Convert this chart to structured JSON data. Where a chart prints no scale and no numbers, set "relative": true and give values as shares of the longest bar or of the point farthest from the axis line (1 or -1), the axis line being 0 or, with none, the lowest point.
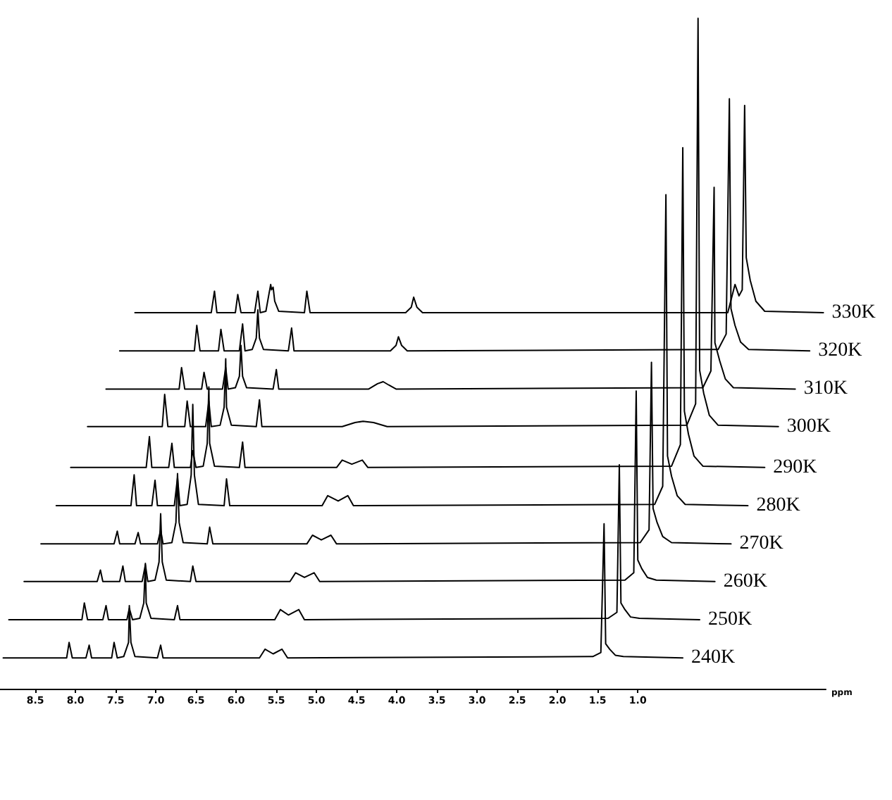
{
  "chart_data": {
    "type": "line",
    "relative": true,
    "xlabel": "ppm",
    "xlim": [
      8.94,
      -1.34
    ],
    "xticks": [
      8.5,
      {
        "value": 8,
        "label": "8.0"
      },
      7.5,
      {
        "value": 7,
        "label": "7.0"
      },
      6.5,
      {
        "value": 6,
        "label": "6.0"
      },
      5.5,
      {
        "value": 5,
        "label": "5.0"
      },
      4.5,
      {
        "value": 4,
        "label": "4.0"
      },
      3.5,
      {
        "value": 3,
        "label": "3.0"
      },
      2.5,
      {
        "value": 2,
        "label": "2.0"
      },
      1.5,
      {
        "value": 1,
        "label": "1.0"
      }
    ],
    "marker": "none",
    "line_style": "solid",
    "series": [
      {
        "name": "330K",
        "color": "#000000",
        "x": [
          7.26,
          6.31,
          6.27,
          6.24,
          6.01,
          5.98,
          5.94,
          5.77,
          5.73,
          5.7,
          5.63,
          5.59,
          5.57,
          5.56,
          5.54,
          5.52,
          5.47,
          5.15,
          5.12,
          5.08,
          3.89,
          3.82,
          3.79,
          3.75,
          3.68,
          -0.12,
          -0.21,
          -0.26,
          -0.3,
          -0.33,
          -0.35,
          -0.4,
          -0.47,
          -0.58,
          -1.31
        ],
        "values": [
          0.561,
          0.561,
          0.593,
          0.561,
          0.561,
          0.588,
          0.561,
          0.561,
          0.593,
          0.561,
          0.563,
          0.59,
          0.603,
          0.595,
          0.599,
          0.578,
          0.563,
          0.561,
          0.593,
          0.561,
          0.561,
          0.569,
          0.584,
          0.569,
          0.561,
          0.561,
          0.603,
          0.586,
          0.595,
          0.87,
          0.643,
          0.609,
          0.578,
          0.563,
          0.561
        ]
      },
      {
        "name": "320K",
        "color": "#000000",
        "x": [
          7.45,
          6.52,
          6.49,
          6.45,
          6.22,
          6.19,
          6.15,
          5.96,
          5.92,
          5.89,
          5.8,
          5.75,
          5.73,
          5.71,
          5.66,
          5.35,
          5.31,
          5.28,
          4.08,
          4.01,
          3.98,
          3.94,
          3.87,
          0,
          -0.1,
          -0.14,
          -0.16,
          -0.21,
          -0.28,
          -0.38,
          -1.14
        ],
        "values": [
          0.504,
          0.504,
          0.542,
          0.504,
          0.504,
          0.536,
          0.504,
          0.504,
          0.544,
          0.504,
          0.506,
          0.523,
          0.565,
          0.523,
          0.506,
          0.504,
          0.538,
          0.504,
          0.504,
          0.512,
          0.525,
          0.512,
          0.504,
          0.506,
          0.529,
          0.88,
          0.567,
          0.542,
          0.517,
          0.506,
          0.504
        ]
      },
      {
        "name": "310K",
        "color": "#000000",
        "x": [
          7.62,
          6.71,
          6.68,
          6.64,
          6.43,
          6.4,
          6.36,
          6.17,
          6.13,
          6.1,
          6.01,
          5.96,
          5.94,
          5.92,
          5.87,
          5.54,
          5.5,
          5.47,
          4.35,
          4.24,
          4.17,
          4.1,
          4.01,
          0.19,
          0.09,
          0.05,
          0.04,
          -0.02,
          -0.09,
          -0.19,
          -0.96
        ],
        "values": [
          0.447,
          0.447,
          0.479,
          0.447,
          0.447,
          0.472,
          0.447,
          0.447,
          0.479,
          0.447,
          0.449,
          0.466,
          0.512,
          0.466,
          0.449,
          0.447,
          0.476,
          0.447,
          0.447,
          0.455,
          0.458,
          0.453,
          0.447,
          0.449,
          0.474,
          0.748,
          0.516,
          0.489,
          0.462,
          0.449,
          0.447
        ]
      },
      {
        "name": "300K",
        "color": "#000000",
        "x": [
          7.85,
          6.92,
          6.89,
          6.85,
          6.64,
          6.61,
          6.57,
          6.38,
          6.34,
          6.31,
          6.2,
          6.15,
          6.13,
          6.12,
          6.06,
          5.75,
          5.71,
          5.68,
          4.68,
          4.52,
          4.42,
          4.29,
          4.12,
          0.39,
          0.28,
          0.25,
          0.23,
          0.18,
          0.11,
          0,
          -0.75
        ],
        "values": [
          0.391,
          0.391,
          0.439,
          0.391,
          0.391,
          0.429,
          0.391,
          0.391,
          0.429,
          0.391,
          0.393,
          0.42,
          0.492,
          0.42,
          0.393,
          0.391,
          0.431,
          0.391,
          0.391,
          0.397,
          0.399,
          0.397,
          0.391,
          0.393,
          0.425,
          1,
          0.475,
          0.441,
          0.408,
          0.393,
          0.391
        ]
      },
      {
        "name": "290K",
        "color": "#000000",
        "x": [
          8.06,
          7.12,
          7.08,
          7.05,
          6.84,
          6.8,
          6.77,
          6.57,
          6.54,
          6.5,
          6.41,
          6.36,
          6.34,
          6.33,
          6.27,
          5.96,
          5.92,
          5.89,
          4.75,
          4.68,
          4.56,
          4.43,
          4.36,
          0.58,
          0.47,
          0.44,
          0.42,
          0.37,
          0.3,
          0.19,
          -0.58
        ],
        "values": [
          0.33,
          0.33,
          0.376,
          0.33,
          0.33,
          0.366,
          0.33,
          0.33,
          0.355,
          0.33,
          0.332,
          0.366,
          0.45,
          0.366,
          0.332,
          0.33,
          0.368,
          0.33,
          0.33,
          0.341,
          0.335,
          0.341,
          0.33,
          0.332,
          0.364,
          0.807,
          0.414,
          0.38,
          0.347,
          0.332,
          0.33
        ]
      },
      {
        "name": "280K",
        "color": "#000000",
        "x": [
          8.24,
          7.31,
          7.27,
          7.24,
          7.05,
          7.01,
          6.98,
          6.77,
          6.73,
          6.7,
          6.61,
          6.56,
          6.54,
          6.52,
          6.47,
          6.15,
          6.12,
          6.08,
          4.93,
          4.86,
          4.73,
          4.61,
          4.54,
          0.79,
          0.69,
          0.65,
          0.63,
          0.58,
          0.51,
          0.41,
          -0.37
        ],
        "values": [
          0.273,
          0.273,
          0.319,
          0.273,
          0.273,
          0.311,
          0.273,
          0.273,
          0.315,
          0.273,
          0.275,
          0.319,
          0.424,
          0.319,
          0.275,
          0.273,
          0.313,
          0.273,
          0.273,
          0.288,
          0.28,
          0.288,
          0.273,
          0.275,
          0.302,
          0.737,
          0.347,
          0.317,
          0.288,
          0.275,
          0.273
        ]
      },
      {
        "name": "270K",
        "color": "#000000",
        "x": [
          8.43,
          7.52,
          7.48,
          7.45,
          7.26,
          7.22,
          7.19,
          6.98,
          6.94,
          6.91,
          6.8,
          6.75,
          6.73,
          6.71,
          6.66,
          6.36,
          6.33,
          6.29,
          5.12,
          5.05,
          4.94,
          4.82,
          4.75,
          0.97,
          0.86,
          0.83,
          0.81,
          0.76,
          0.69,
          0.58,
          -0.16
        ],
        "values": [
          0.216,
          0.216,
          0.235,
          0.216,
          0.216,
          0.233,
          0.216,
          0.216,
          0.237,
          0.216,
          0.218,
          0.248,
          0.321,
          0.248,
          0.218,
          0.216,
          0.241,
          0.216,
          0.216,
          0.229,
          0.222,
          0.229,
          0.216,
          0.218,
          0.237,
          0.487,
          0.269,
          0.248,
          0.227,
          0.218,
          0.216
        ]
      },
      {
        "name": "260K",
        "color": "#000000",
        "x": [
          8.64,
          7.73,
          7.69,
          7.66,
          7.45,
          7.41,
          7.38,
          7.17,
          7.13,
          7.1,
          7.01,
          6.96,
          6.94,
          6.92,
          6.87,
          6.57,
          6.54,
          6.5,
          5.33,
          5.26,
          5.15,
          5.03,
          4.96,
          1.16,
          1.05,
          1.02,
          1.0,
          0.95,
          0.88,
          0.77,
          0.04
        ],
        "values": [
          0.16,
          0.16,
          0.177,
          0.16,
          0.16,
          0.183,
          0.16,
          0.16,
          0.185,
          0.16,
          0.162,
          0.189,
          0.261,
          0.189,
          0.162,
          0.16,
          0.183,
          0.16,
          0.16,
          0.173,
          0.166,
          0.173,
          0.16,
          0.162,
          0.173,
          0.444,
          0.192,
          0.179,
          0.166,
          0.162,
          0.16
        ]
      },
      {
        "name": "250K",
        "color": "#000000",
        "x": [
          8.83,
          7.92,
          7.89,
          7.85,
          7.66,
          7.62,
          7.59,
          7.36,
          7.33,
          7.29,
          7.2,
          7.15,
          7.13,
          7.12,
          7.06,
          6.77,
          6.73,
          6.7,
          5.52,
          5.45,
          5.35,
          5.22,
          5.15,
          1.37,
          1.26,
          1.23,
          1.21,
          1.16,
          1.09,
          0.98,
          0.23
        ],
        "values": [
          0.103,
          0.103,
          0.128,
          0.103,
          0.103,
          0.124,
          0.103,
          0.103,
          0.12,
          0.103,
          0.105,
          0.128,
          0.187,
          0.128,
          0.105,
          0.103,
          0.124,
          0.103,
          0.103,
          0.118,
          0.11,
          0.118,
          0.103,
          0.105,
          0.114,
          0.334,
          0.128,
          0.118,
          0.107,
          0.105,
          0.103
        ]
      },
      {
        "name": "240K",
        "color": "#000000",
        "x": [
          8.9,
          8.11,
          8.08,
          8.04,
          7.87,
          7.83,
          7.8,
          7.55,
          7.52,
          7.48,
          7.4,
          7.34,
          7.33,
          7.31,
          7.26,
          6.98,
          6.94,
          6.91,
          5.71,
          5.64,
          5.54,
          5.43,
          5.36,
          1.56,
          1.46,
          1.42,
          1.4,
          1.35,
          1.28,
          1.18,
          0.44
        ],
        "values": [
          0.046,
          0.046,
          0.069,
          0.046,
          0.046,
          0.065,
          0.046,
          0.046,
          0.069,
          0.046,
          0.048,
          0.069,
          0.124,
          0.069,
          0.048,
          0.046,
          0.065,
          0.046,
          0.046,
          0.059,
          0.052,
          0.059,
          0.046,
          0.048,
          0.054,
          0.246,
          0.067,
          0.059,
          0.05,
          0.048,
          0.046
        ]
      }
    ]
  }
}
